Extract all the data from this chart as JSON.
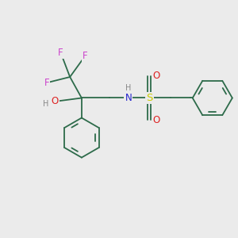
{
  "bg_color": "#ebebeb",
  "bond_color": "#2d6b4a",
  "line_width": 1.3,
  "atom_colors": {
    "F": "#cc44cc",
    "O": "#dd2222",
    "N": "#2222cc",
    "S": "#cccc00",
    "H": "#888888",
    "C": "#2d6b4a"
  },
  "font_size": 8.5,
  "fig_size": [
    3.0,
    3.0
  ],
  "dpi": 100
}
